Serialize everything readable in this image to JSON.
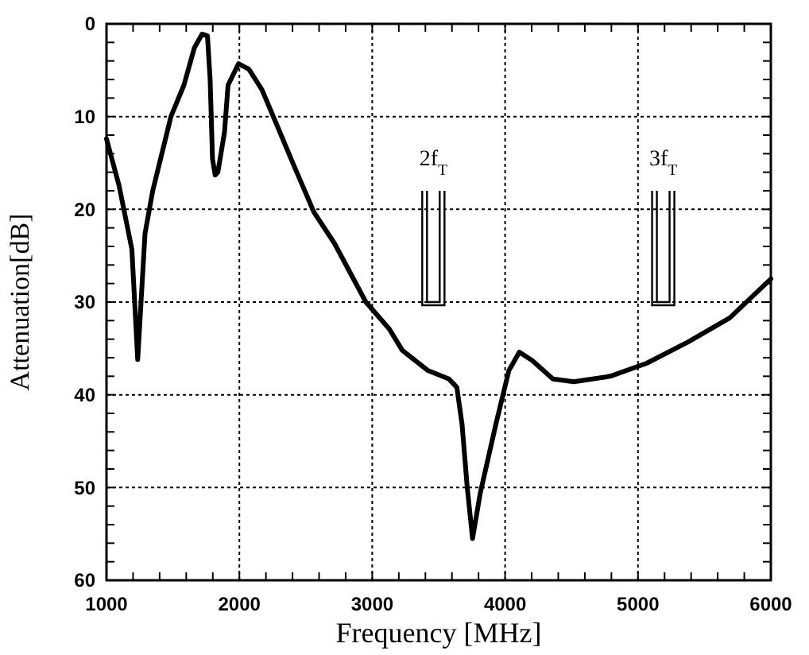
{
  "chart_data": {
    "type": "line",
    "xlabel": "Frequency [MHz]",
    "ylabel": "Attenuation[dB]",
    "xlim": [
      1000,
      6000
    ],
    "ylim": [
      60,
      0
    ],
    "xticks": [
      1000,
      {
        "value": 1200,
        "label": null
      },
      {
        "value": 1400,
        "label": null
      },
      {
        "value": 1600,
        "label": null
      },
      {
        "value": 1800,
        "label": null
      },
      2000,
      {
        "value": 2200,
        "label": null
      },
      {
        "value": 2400,
        "label": null
      },
      {
        "value": 2600,
        "label": null
      },
      {
        "value": 2800,
        "label": null
      },
      3000,
      {
        "value": 3200,
        "label": null
      },
      {
        "value": 3400,
        "label": null
      },
      {
        "value": 3600,
        "label": null
      },
      {
        "value": 3800,
        "label": null
      },
      4000,
      {
        "value": 4200,
        "label": null
      },
      {
        "value": 4400,
        "label": null
      },
      {
        "value": 4600,
        "label": null
      },
      {
        "value": 4800,
        "label": null
      },
      5000,
      {
        "value": 5200,
        "label": null
      },
      {
        "value": 5400,
        "label": null
      },
      {
        "value": 5600,
        "label": null
      },
      {
        "value": 5800,
        "label": null
      },
      6000
    ],
    "yticks": [
      0,
      {
        "value": 2,
        "label": null
      },
      {
        "value": 4,
        "label": null
      },
      {
        "value": 6,
        "label": null
      },
      {
        "value": 8,
        "label": null
      },
      10,
      {
        "value": 12,
        "label": null
      },
      {
        "value": 14,
        "label": null
      },
      {
        "value": 16,
        "label": null
      },
      {
        "value": 18,
        "label": null
      },
      20,
      {
        "value": 22,
        "label": null
      },
      {
        "value": 24,
        "label": null
      },
      {
        "value": 26,
        "label": null
      },
      {
        "value": 28,
        "label": null
      },
      30,
      {
        "value": 32,
        "label": null
      },
      {
        "value": 34,
        "label": null
      },
      {
        "value": 36,
        "label": null
      },
      {
        "value": 38,
        "label": null
      },
      40,
      {
        "value": 42,
        "label": null
      },
      {
        "value": 44,
        "label": null
      },
      {
        "value": 46,
        "label": null
      },
      {
        "value": 48,
        "label": null
      },
      50,
      {
        "value": 52,
        "label": null
      },
      {
        "value": 54,
        "label": null
      },
      {
        "value": 56,
        "label": null
      },
      {
        "value": 58,
        "label": null
      },
      60
    ],
    "grid": true,
    "marker": "none",
    "line_style": "solid",
    "annotations": [
      "2f$_{T}$",
      "3f$_{T}$"
    ],
    "series": [
      {
        "color": "#000000",
        "x": [
          1000,
          1094,
          1191,
          1235,
          1290,
          1348,
          1485,
          1583,
          1661,
          1720,
          1760,
          1780,
          1798,
          1818,
          1838,
          1888,
          1915,
          1994,
          2072,
          2170,
          2288,
          2405,
          2561,
          2717,
          2952,
          3128,
          3226,
          3421,
          3578,
          3637,
          3676,
          3715,
          3755,
          3813,
          3930,
          4028,
          4107,
          4204,
          4360,
          4517,
          4791,
          5065,
          5378,
          5691,
          6000
        ],
        "values": [
          12.4,
          17.4,
          24.3,
          36.2,
          22.6,
          18,
          10,
          6.6,
          2.6,
          1.1,
          1.3,
          6,
          14.6,
          16.3,
          16,
          11.7,
          6.6,
          4.3,
          4.9,
          7.1,
          11.1,
          15.1,
          20.3,
          23.7,
          30,
          32.9,
          35.2,
          37.4,
          38.3,
          39.2,
          43.2,
          50,
          55.5,
          50.6,
          43.2,
          37.4,
          35.4,
          36.3,
          38.3,
          38.6,
          38,
          36.6,
          34.3,
          31.7,
          27.5
        ]
      }
    ]
  }
}
